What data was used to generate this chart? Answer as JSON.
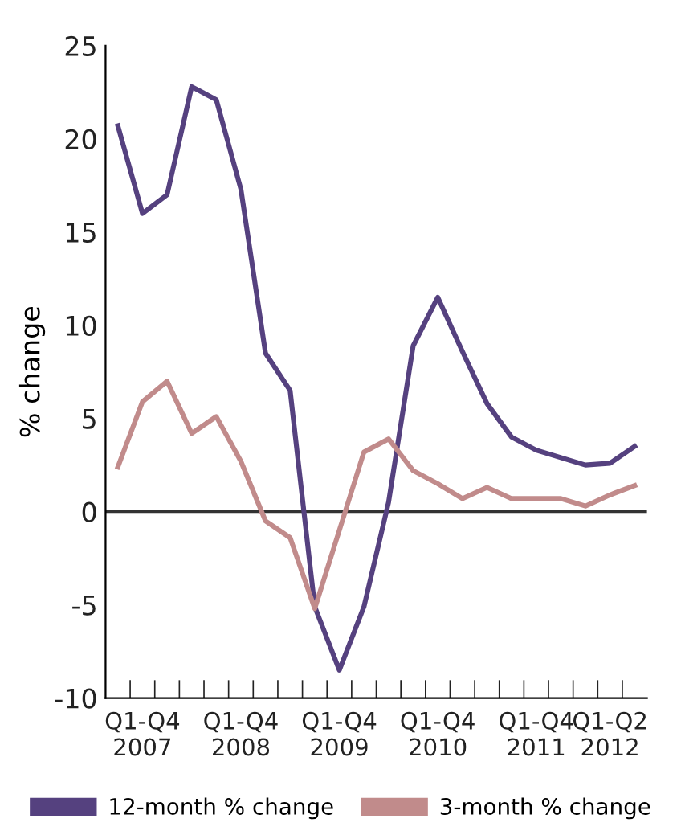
{
  "chart_data": {
    "type": "line",
    "ylabel": "% change",
    "categories": [
      null,
      "Q1-Q4\n2007",
      null,
      null,
      null,
      "Q1-Q4\n2008",
      null,
      null,
      null,
      "Q1-Q4\n2009",
      null,
      null,
      null,
      "Q1-Q4\n2010",
      null,
      null,
      null,
      "Q1-Q4\n2011",
      null,
      null,
      "Q1-Q2\n2012",
      null
    ],
    "series": [
      {
        "name": "12-month % change",
        "color": "#55417f",
        "values": [
          20.7,
          16.0,
          17.0,
          22.8,
          22.1,
          17.3,
          8.5,
          6.5,
          -5.1,
          -8.5,
          -5.1,
          0.5,
          8.9,
          11.5,
          8.6,
          5.8,
          4.0,
          3.3,
          2.9,
          2.5,
          2.6,
          3.5
        ]
      },
      {
        "name": "3-month % change",
        "color": "#c18b8b",
        "values": [
          2.4,
          5.9,
          7.0,
          4.2,
          5.1,
          2.7,
          -0.5,
          -1.4,
          -5.2,
          -1.0,
          3.2,
          3.9,
          2.2,
          1.5,
          0.7,
          1.3,
          0.7,
          0.7,
          0.7,
          0.3,
          0.9,
          1.4
        ]
      }
    ],
    "ylim": [
      -10,
      25
    ],
    "yticks": [
      -10,
      -5,
      0,
      5,
      10,
      15,
      20,
      25
    ],
    "ref_lines": [
      {
        "axis": "y",
        "value": 0,
        "color": "#333333"
      }
    ],
    "grid": false,
    "legend": "bottom",
    "marker": "none",
    "line_style": "solid"
  }
}
